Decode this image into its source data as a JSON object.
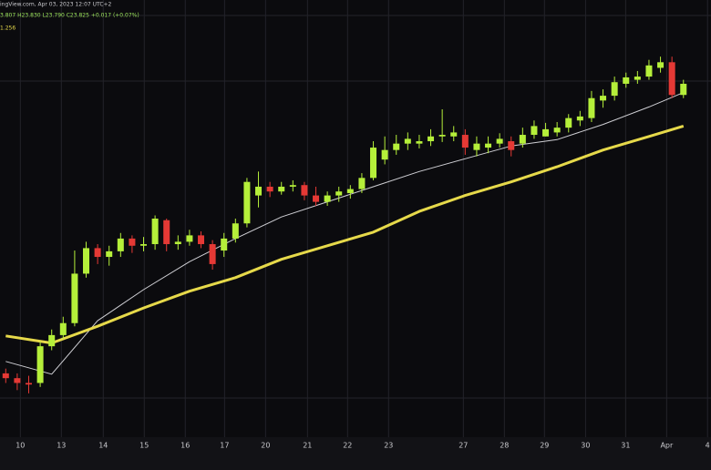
{
  "chart_data": {
    "type": "candlestick",
    "annotations": [
      "ingView.com, Apr 03, 2023 12:07 UTC+2",
      "3.807 H23.830 L23.790 C23.825 +0.017 (+0.07%)",
      "1.256"
    ],
    "up_color": "#b5ef3a",
    "down_color": "#e53935",
    "open": [
      20.23,
      20.17,
      20.11,
      20.11,
      20.57,
      20.71,
      20.86,
      21.48,
      21.8,
      21.69,
      21.76,
      21.92,
      21.83,
      21.85,
      22.15,
      21.85,
      21.88,
      21.96,
      21.85,
      21.77,
      21.92,
      22.11,
      22.46,
      22.57,
      22.51,
      22.57,
      22.59,
      22.46,
      22.38,
      22.46,
      22.49,
      22.54,
      22.68,
      22.91,
      23.03,
      23.11,
      23.11,
      23.14,
      23.2,
      23.2,
      23.22,
      23.03,
      23.06,
      23.11,
      23.14,
      23.11,
      23.22,
      23.2,
      23.25,
      23.31,
      23.4,
      23.43,
      23.65,
      23.71,
      23.86,
      23.91,
      23.95,
      24.06,
      24.13,
      23.72
    ],
    "high": [
      20.29,
      20.23,
      20.2,
      20.63,
      20.78,
      20.94,
      21.77,
      21.88,
      21.85,
      21.83,
      21.99,
      21.96,
      21.94,
      22.21,
      22.17,
      21.96,
      22.03,
      22.01,
      21.9,
      21.99,
      22.17,
      22.68,
      22.76,
      22.63,
      22.63,
      22.65,
      22.63,
      22.57,
      22.51,
      22.57,
      22.59,
      22.74,
      23.14,
      23.2,
      23.22,
      23.25,
      23.22,
      23.29,
      23.54,
      23.33,
      23.29,
      23.2,
      23.2,
      23.24,
      23.2,
      23.31,
      23.4,
      23.37,
      23.38,
      23.48,
      23.52,
      23.77,
      23.79,
      23.95,
      24.0,
      24.02,
      24.16,
      24.2,
      24.2,
      23.91
    ],
    "low": [
      20.11,
      20.02,
      19.98,
      20.06,
      20.52,
      20.66,
      20.82,
      21.43,
      21.6,
      21.58,
      21.69,
      21.74,
      21.76,
      21.78,
      21.76,
      21.78,
      21.83,
      21.8,
      21.53,
      21.69,
      21.87,
      22.06,
      22.31,
      22.44,
      22.47,
      22.51,
      22.4,
      22.33,
      22.33,
      22.38,
      22.42,
      22.49,
      22.65,
      22.85,
      22.97,
      23.03,
      23.05,
      23.08,
      23.13,
      23.14,
      22.97,
      22.95,
      22.99,
      23.06,
      22.95,
      23.06,
      23.17,
      23.2,
      23.2,
      23.25,
      23.33,
      23.38,
      23.56,
      23.65,
      23.81,
      23.86,
      23.91,
      24.0,
      23.68,
      23.68
    ],
    "close": [
      20.17,
      20.11,
      20.09,
      20.57,
      20.71,
      20.86,
      21.48,
      21.8,
      21.69,
      21.76,
      21.92,
      21.83,
      21.85,
      22.17,
      21.85,
      21.88,
      21.96,
      21.85,
      21.6,
      21.92,
      22.11,
      22.63,
      22.57,
      22.51,
      22.57,
      22.59,
      22.46,
      22.38,
      22.46,
      22.51,
      22.54,
      22.68,
      23.06,
      23.03,
      23.11,
      23.17,
      23.14,
      23.2,
      23.22,
      23.25,
      23.06,
      23.11,
      23.11,
      23.17,
      23.03,
      23.22,
      23.33,
      23.29,
      23.31,
      23.43,
      23.45,
      23.68,
      23.71,
      23.88,
      23.94,
      23.95,
      24.09,
      24.13,
      23.72,
      23.86
    ],
    "series": [
      {
        "color": "#cfcfd4",
        "x": [
          0,
          4,
          8,
          12,
          16,
          20,
          24,
          28,
          32,
          36,
          40,
          44,
          48,
          52,
          56,
          59
        ],
        "values": [
          20.38,
          20.22,
          20.89,
          21.28,
          21.63,
          21.92,
          22.19,
          22.38,
          22.57,
          22.76,
          22.92,
          23.08,
          23.16,
          23.35,
          23.57,
          23.75
        ]
      },
      {
        "color": "#e6d94a",
        "x": [
          0,
          4,
          8,
          12,
          16,
          20,
          24,
          28,
          32,
          36,
          40,
          44,
          48,
          52,
          56,
          59
        ],
        "values": [
          20.7,
          20.61,
          20.82,
          21.05,
          21.26,
          21.43,
          21.66,
          21.83,
          22.0,
          22.26,
          22.46,
          22.63,
          22.82,
          23.03,
          23.2,
          23.33
        ]
      }
    ],
    "xlim": [
      -0.5,
      61.4
    ],
    "ylim": [
      19.43,
      24.91
    ],
    "xticks": [
      {
        "value": 1.27,
        "label": "10"
      },
      {
        "value": 4.84,
        "label": "13"
      },
      {
        "value": 8.49,
        "label": "14"
      },
      {
        "value": 12.06,
        "label": "15"
      },
      {
        "value": 15.63,
        "label": "16"
      },
      {
        "value": 19.05,
        "label": "17"
      },
      {
        "value": 22.62,
        "label": "20"
      },
      {
        "value": 26.27,
        "label": "21"
      },
      {
        "value": 29.76,
        "label": "22"
      },
      {
        "value": 33.33,
        "label": "23"
      },
      {
        "value": 39.84,
        "label": "27"
      },
      {
        "value": 43.41,
        "label": "28"
      },
      {
        "value": 46.9,
        "label": "29"
      },
      {
        "value": 50.48,
        "label": "30"
      },
      {
        "value": 53.97,
        "label": "31"
      },
      {
        "value": 57.54,
        "label": "Apr"
      },
      {
        "value": 61.1,
        "label": "4"
      }
    ],
    "grid": true
  }
}
